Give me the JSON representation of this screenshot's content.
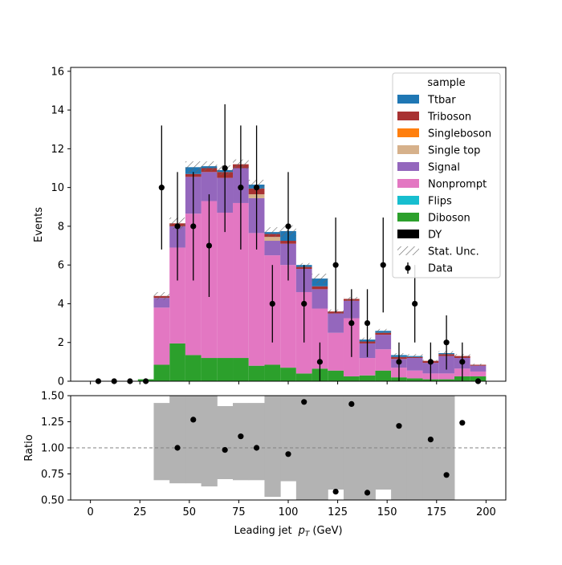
{
  "chart_data": [
    {
      "type": "bar",
      "subtype": "stacked-histogram-with-data-points",
      "ylabel": "Events",
      "xlim": [
        -10,
        210
      ],
      "ylim": [
        0,
        16.2
      ],
      "xticks": [
        "0",
        "25",
        "50",
        "75",
        "100",
        "125",
        "150",
        "175",
        "200"
      ],
      "yticks": [
        "0",
        "2",
        "4",
        "6",
        "8",
        "10",
        "12",
        "14",
        "16"
      ],
      "bin_edges": [
        0,
        8,
        16,
        24,
        32,
        40,
        48,
        56,
        64,
        72,
        80,
        88,
        96,
        104,
        112,
        120,
        128,
        136,
        144,
        152,
        160,
        168,
        176,
        184,
        192,
        200
      ],
      "legend": {
        "title": "sample",
        "placement": "upper right",
        "entries": [
          "Ttbar",
          "Triboson",
          "Singleboson",
          "Single top",
          "Signal",
          "Nonprompt",
          "Flips",
          "Diboson",
          "DY",
          "Stat. Unc.",
          "Data"
        ]
      },
      "series": [
        {
          "name": "Diboson",
          "color": "#2ca02c",
          "values": [
            0,
            0,
            0,
            0.1,
            0.85,
            1.95,
            1.35,
            1.2,
            1.2,
            1.2,
            0.8,
            0.85,
            0.7,
            0.4,
            0.65,
            0.55,
            0.25,
            0.3,
            0.55,
            0.2,
            0.15,
            0.1,
            0.1,
            0.25,
            0.25
          ]
        },
        {
          "name": "Flips",
          "color": "#17becf",
          "values": [
            0,
            0,
            0,
            0,
            0,
            0,
            0,
            0,
            0,
            0,
            0,
            0,
            0,
            0,
            0,
            0,
            0,
            0,
            0,
            0,
            0,
            0,
            0,
            0,
            0
          ]
        },
        {
          "name": "Nonprompt",
          "color": "#e377c2",
          "values": [
            0,
            0,
            0,
            0,
            2.95,
            4.95,
            7.3,
            8.1,
            7.5,
            8.0,
            6.85,
            5.65,
            5.3,
            4.2,
            3.1,
            1.95,
            3.0,
            0.9,
            1.1,
            0.5,
            0.4,
            0.3,
            0.3,
            0.4,
            0.25
          ]
        },
        {
          "name": "Signal",
          "color": "#9467bd",
          "values": [
            0,
            0,
            0,
            0,
            0.5,
            1.1,
            1.9,
            1.5,
            1.8,
            1.8,
            1.8,
            0.75,
            1.1,
            1.2,
            1.0,
            1.0,
            0.9,
            0.75,
            0.75,
            0.45,
            0.65,
            0.55,
            0.9,
            0.55,
            0.3
          ]
        },
        {
          "name": "Single top",
          "color": "#d6b18b",
          "values": [
            0,
            0,
            0,
            0,
            0,
            0,
            0,
            0,
            0,
            0,
            0.2,
            0.2,
            0,
            0,
            0,
            0,
            0,
            0,
            0,
            0,
            0,
            0,
            0,
            0,
            0
          ]
        },
        {
          "name": "Singleboson",
          "color": "#ff7f0e",
          "values": [
            0,
            0,
            0,
            0,
            0,
            0,
            0,
            0,
            0,
            0,
            0,
            0,
            0,
            0,
            0,
            0,
            0,
            0,
            0,
            0,
            0,
            0,
            0,
            0,
            0
          ]
        },
        {
          "name": "Triboson",
          "color": "#a83232",
          "values": [
            0,
            0,
            0,
            0,
            0.1,
            0.15,
            0.15,
            0.2,
            0.3,
            0.2,
            0.3,
            0.15,
            0.15,
            0.1,
            0.15,
            0.1,
            0.1,
            0.1,
            0.1,
            0.1,
            0.05,
            0.1,
            0.1,
            0.1,
            0.05
          ]
        },
        {
          "name": "Ttbar",
          "color": "#1f77b4",
          "values": [
            0,
            0,
            0,
            0,
            0,
            0,
            0.35,
            0.1,
            0.1,
            0,
            0.2,
            0.1,
            0.5,
            0.1,
            0.4,
            0,
            0,
            0.1,
            0.1,
            0.1,
            0.05,
            0,
            0.05,
            0,
            0
          ]
        }
      ],
      "stat_unc_halfwidth": [
        0,
        0,
        0,
        0,
        0.2,
        0.3,
        0.3,
        0.25,
        0.25,
        0.25,
        0.25,
        0.25,
        0.3,
        0.1,
        0.25,
        0.1,
        0.1,
        0.1,
        0.1,
        0.1,
        0.1,
        0.05,
        0.1,
        0.1,
        0.05
      ],
      "data_points": {
        "name": "Data",
        "x": [
          4,
          12,
          20,
          28,
          36,
          44,
          52,
          60,
          68,
          76,
          84,
          92,
          100,
          108,
          116,
          124,
          132,
          140,
          148,
          156,
          164,
          172,
          180,
          188,
          196
        ],
        "y": [
          0,
          0,
          0,
          0,
          10,
          8,
          8,
          7,
          11,
          10,
          10,
          4,
          8,
          4,
          1,
          6,
          3,
          3,
          6,
          1,
          4,
          1,
          2,
          1,
          0
        ],
        "yerr": [
          0,
          0,
          0,
          0,
          3.2,
          2.8,
          2.8,
          2.65,
          3.3,
          3.2,
          3.2,
          2.0,
          2.8,
          2.0,
          1.0,
          2.45,
          1.75,
          1.75,
          2.45,
          1.0,
          2.0,
          1.0,
          1.4,
          1.0,
          0
        ]
      }
    },
    {
      "type": "scatter",
      "subtype": "ratio-panel",
      "xlabel": "Leading jet  p_T (GeV)",
      "xlabel_main": "Leading jet",
      "xlabel_sub": "T",
      "xlabel_unit": "(GeV)",
      "ylabel": "Ratio",
      "xlim": [
        -10,
        210
      ],
      "ylim": [
        0.5,
        1.5
      ],
      "reference_line": 1.0,
      "xticks": [
        "0",
        "25",
        "50",
        "75",
        "100",
        "125",
        "150",
        "175",
        "200"
      ],
      "yticks": [
        "0.50",
        "0.75",
        "1.00",
        "1.25",
        "1.50"
      ],
      "uncertainty_band": {
        "color": "#b3b3b3",
        "lower": [
          null,
          null,
          null,
          null,
          0.69,
          0.66,
          0.66,
          0.63,
          0.7,
          0.69,
          0.69,
          0.53,
          0.68,
          0.5,
          0.5,
          0.6,
          0.5,
          0.5,
          0.6,
          0.5,
          0.5,
          0.5,
          0.5,
          null,
          null
        ],
        "upper": [
          null,
          null,
          null,
          null,
          1.43,
          1.5,
          1.5,
          1.5,
          1.4,
          1.43,
          1.43,
          1.5,
          1.5,
          1.5,
          1.5,
          1.5,
          1.5,
          1.5,
          1.5,
          1.5,
          1.5,
          1.5,
          1.5,
          null,
          null
        ]
      },
      "x": [
        44,
        52,
        68,
        76,
        84,
        100,
        108,
        124,
        132,
        140,
        156,
        172,
        180,
        188
      ],
      "y": [
        1.0,
        1.27,
        0.98,
        1.11,
        1.0,
        0.94,
        1.44,
        0.58,
        1.42,
        0.57,
        1.21,
        1.08,
        0.74,
        1.24
      ]
    }
  ]
}
